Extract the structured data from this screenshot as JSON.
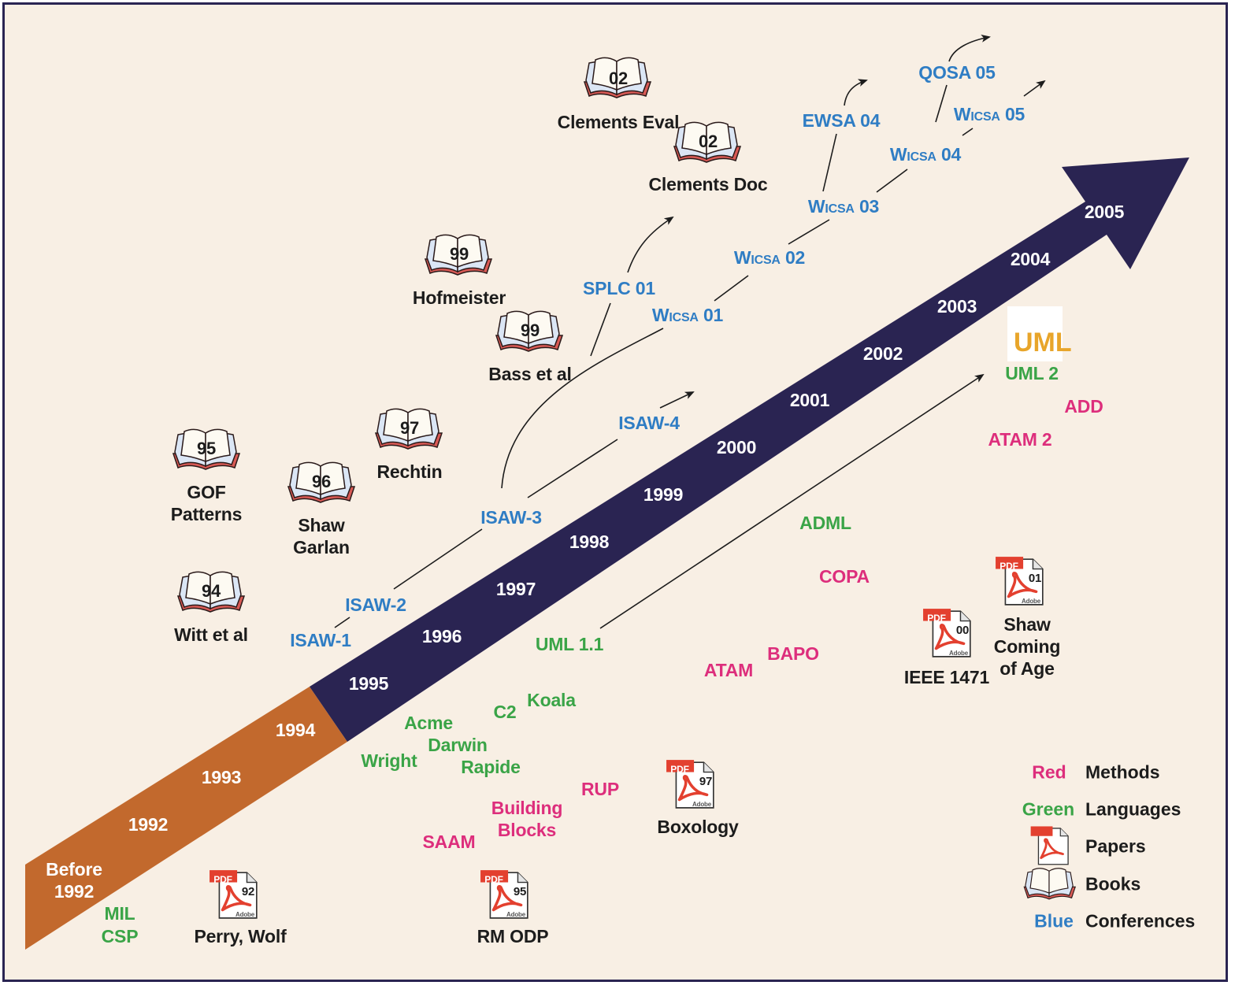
{
  "colors": {
    "background": "#f8efe4",
    "frame": "#2a2452",
    "arrow_early": "#c2692d",
    "arrow_main": "#2a2452",
    "methods": "#dd2e7c",
    "languages": "#3aa447",
    "conferences": "#2f7dc4",
    "text": "#1c1c1c"
  },
  "years": [
    "Before\n1992",
    "1992",
    "1993",
    "1994",
    "1995",
    "1996",
    "1997",
    "1998",
    "1999",
    "2000",
    "2001",
    "2002",
    "2003",
    "2004",
    "2005"
  ],
  "conferences": {
    "isaw1": "ISAW-1",
    "isaw2": "ISAW-2",
    "isaw3": "ISAW-3",
    "isaw4": "ISAW-4",
    "splc01": "SPLC 01",
    "wicsa01": "Wicsa 01",
    "wicsa02": "Wicsa 02",
    "wicsa03": "Wicsa 03",
    "wicsa04": "Wicsa 04",
    "wicsa05": "Wicsa 05",
    "ewsa04": "EWSA 04",
    "qosa05": "QOSA 05"
  },
  "languages": {
    "mil": "MIL",
    "csp": "CSP",
    "uml11": "UML 1.1",
    "koala": "Koala",
    "c2": "C2",
    "acme": "Acme",
    "darwin": "Darwin",
    "wright": "Wright",
    "rapide": "Rapide",
    "adml": "ADML",
    "uml2": "UML 2"
  },
  "methods": {
    "rup": "RUP",
    "building_blocks": "Building\nBlocks",
    "saam": "SAAM",
    "atam": "ATAM",
    "bapo": "BAPO",
    "copa": "COPA",
    "atam2": "ATAM 2",
    "add": "ADD"
  },
  "books": [
    {
      "year": "02",
      "label": "Clements Eval"
    },
    {
      "year": "02",
      "label": "Clements Doc"
    },
    {
      "year": "99",
      "label": "Hofmeister"
    },
    {
      "year": "99",
      "label": "Bass et al"
    },
    {
      "year": "97",
      "label": "Rechtin"
    },
    {
      "year": "95",
      "label": "GOF\nPatterns"
    },
    {
      "year": "96",
      "label": "Shaw\nGarlan"
    },
    {
      "year": "94",
      "label": "Witt et al"
    }
  ],
  "papers": [
    {
      "year": "92",
      "label": "Perry, Wolf"
    },
    {
      "year": "95",
      "label": "RM ODP"
    },
    {
      "year": "97",
      "label": "Boxology"
    },
    {
      "year": "00",
      "label": "IEEE 1471"
    },
    {
      "year": "01",
      "label": "Shaw\nComing\nof Age"
    }
  ],
  "pdf_badge": "PDF",
  "adobe_badge": "Adobe",
  "uml_logo": "UML",
  "legend": [
    {
      "key": "Red",
      "text": "Methods"
    },
    {
      "key": "Green",
      "text": "Languages"
    },
    {
      "key": "",
      "text": "Papers"
    },
    {
      "key": "",
      "text": "Books"
    },
    {
      "key": "Blue",
      "text": "Conferences"
    }
  ]
}
